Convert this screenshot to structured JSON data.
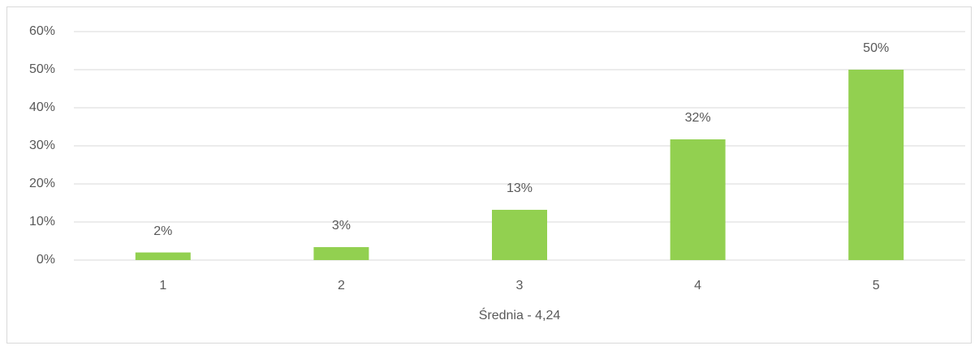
{
  "chart_data": {
    "type": "bar",
    "x_label": "Średnia - 4,24",
    "categories": [
      "1",
      "2",
      "3",
      "4",
      "5"
    ],
    "values": [
      2,
      3.4,
      13.2,
      31.7,
      50
    ],
    "value_labels": [
      "2%",
      "3%",
      "13%",
      "32%",
      "50%"
    ],
    "color": "#92d050",
    "ylim": [
      0,
      60
    ],
    "yticks": [
      {
        "value": 0,
        "label": "0%"
      },
      {
        "value": 10,
        "label": "10%"
      },
      {
        "value": 20,
        "label": "20%"
      },
      {
        "value": 30,
        "label": "30%"
      },
      {
        "value": 40,
        "label": "40%"
      },
      {
        "value": 50,
        "label": "50%"
      },
      {
        "value": 60,
        "label": "60%"
      }
    ],
    "grid": true
  }
}
